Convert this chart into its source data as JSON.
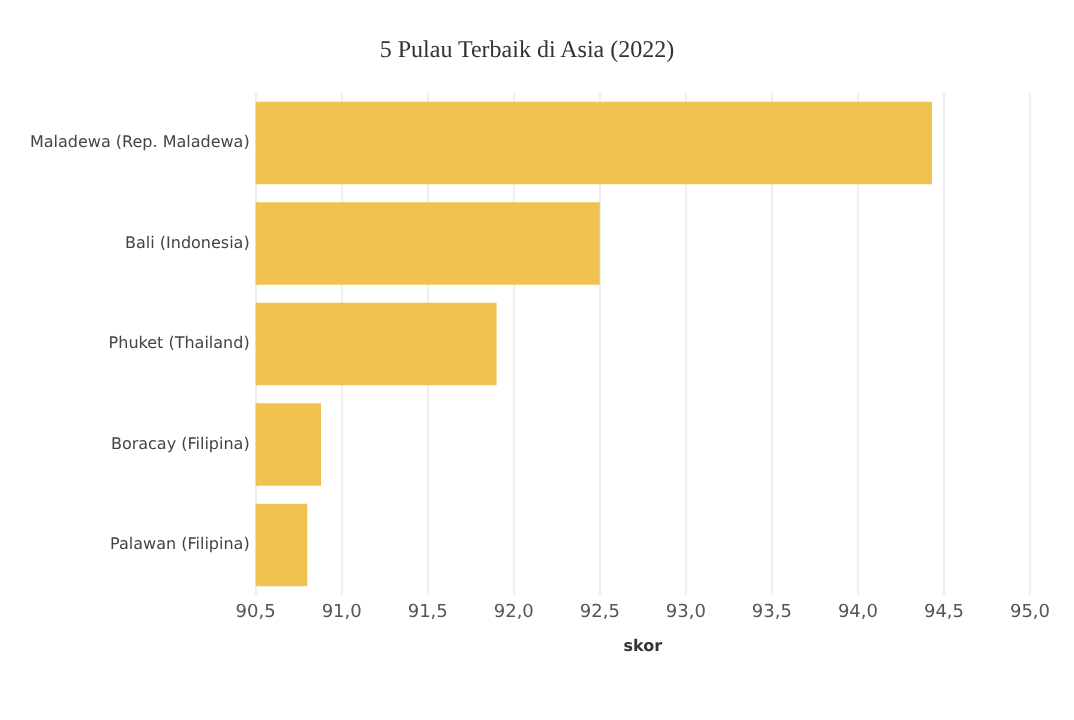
{
  "chart_data": {
    "type": "bar",
    "orientation": "horizontal",
    "title": "5 Pulau Terbaik di Asia (2022)",
    "xlabel": "skor",
    "categories": [
      "Maladewa (Rep. Maladewa)",
      "Bali (Indonesia)",
      "Phuket (Thailand)",
      "Boracay (Filipina)",
      "Palawan (Filipina)"
    ],
    "values": [
      94.43,
      92.5,
      91.9,
      90.88,
      90.8
    ],
    "color": "#f0c24f",
    "xlim": [
      90.5,
      95
    ],
    "xticks": [
      {
        "value": 90.5,
        "label": "90,5"
      },
      {
        "value": 91,
        "label": "91,0"
      },
      {
        "value": 91.5,
        "label": "91,5"
      },
      {
        "value": 92,
        "label": "92,0"
      },
      {
        "value": 92.5,
        "label": "92,5"
      },
      {
        "value": 93,
        "label": "93,0"
      },
      {
        "value": 93.5,
        "label": "93,5"
      },
      {
        "value": 94,
        "label": "94,0"
      },
      {
        "value": 94.5,
        "label": "94,5"
      },
      {
        "value": 95,
        "label": "95,0"
      }
    ],
    "grid": "x",
    "legend": false
  }
}
